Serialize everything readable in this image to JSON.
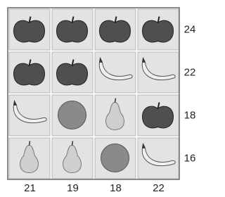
{
  "grid": [
    [
      "apple",
      "apple",
      "apple",
      "apple"
    ],
    [
      "apple",
      "apple",
      "banana",
      "banana"
    ],
    [
      "banana",
      "orange",
      "pear",
      "apple"
    ],
    [
      "pear",
      "pear",
      "orange",
      "banana"
    ]
  ],
  "row_sums": [
    24,
    22,
    18,
    16
  ],
  "column_sums": [
    21,
    19,
    18,
    22
  ]
}
